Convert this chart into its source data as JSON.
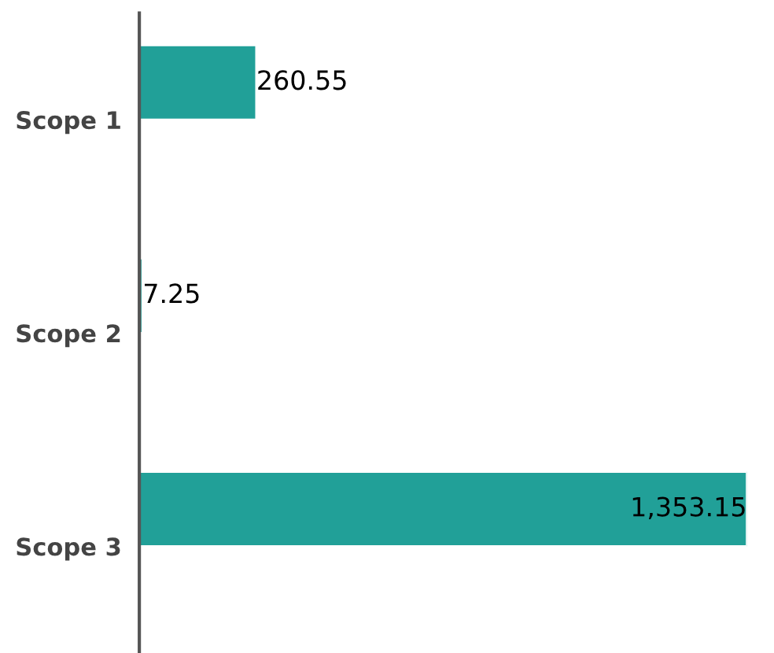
{
  "chart_data": {
    "type": "bar",
    "orientation": "horizontal",
    "categories": [
      "Scope 1",
      "Scope 2",
      "Scope 3"
    ],
    "values": [
      260.55,
      7.25,
      1353.15
    ],
    "value_labels": [
      "260.55",
      "7.25",
      "1,353.15"
    ],
    "color": "#21a098",
    "tick_labels": "y",
    "grid": false,
    "legend": false
  }
}
